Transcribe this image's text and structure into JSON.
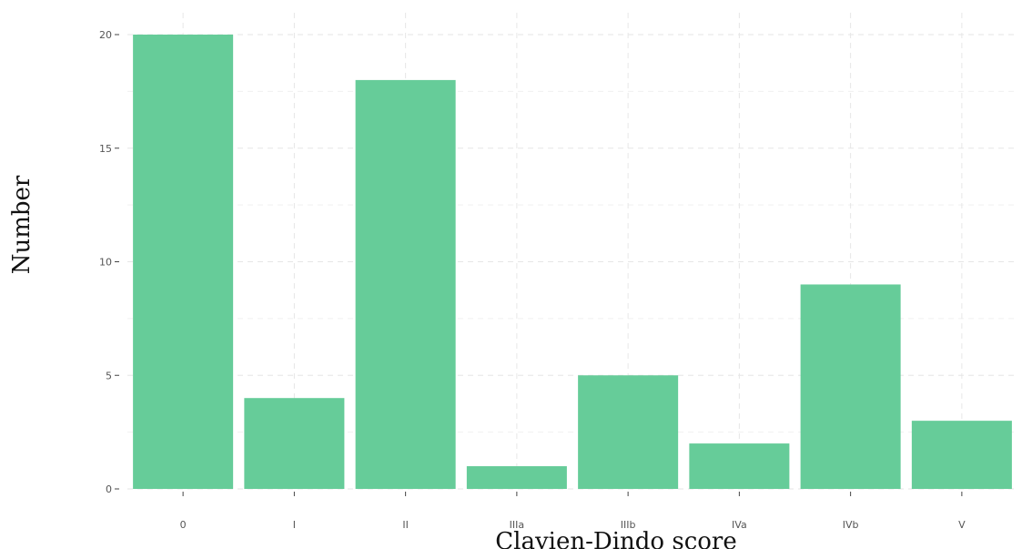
{
  "chart_data": {
    "type": "bar",
    "categories": [
      "0",
      "I",
      "II",
      "IIIa",
      "IIIb",
      "IVa",
      "IVb",
      "V"
    ],
    "values": [
      20,
      4,
      18,
      1,
      5,
      2,
      9,
      3
    ],
    "xlabel": "Clavien-Dindo score",
    "ylabel": "Number",
    "ylim": [
      0,
      20
    ],
    "yticks": [
      0,
      5,
      10,
      15,
      20
    ],
    "grid": true,
    "bar_color": "#66cc99"
  }
}
